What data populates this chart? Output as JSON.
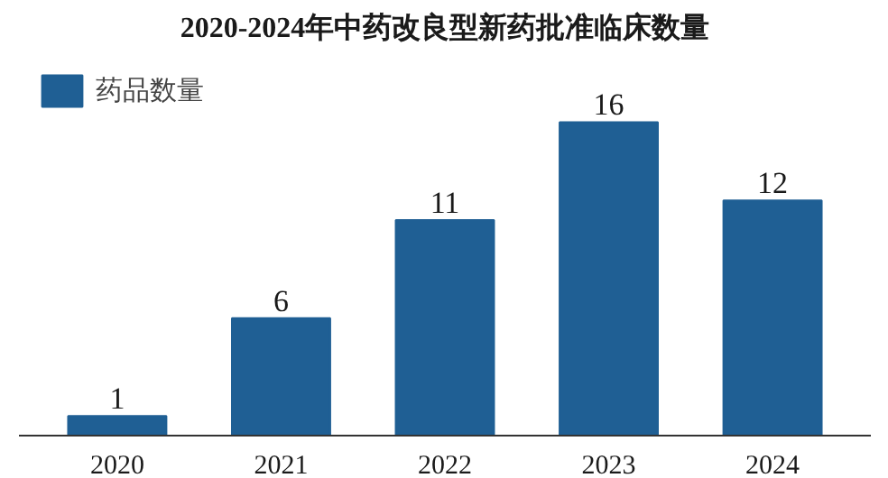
{
  "chart_data": {
    "type": "bar",
    "title": "2020-2024年中药改良型新药批准临床数量",
    "categories": [
      "2020",
      "2021",
      "2022",
      "2023",
      "2024"
    ],
    "series": [
      {
        "name": "药品数量",
        "color": "#1f5f94",
        "values": [
          1,
          6,
          11,
          16,
          12
        ]
      }
    ],
    "data_labels": true,
    "legend": "top left",
    "grid": false
  }
}
